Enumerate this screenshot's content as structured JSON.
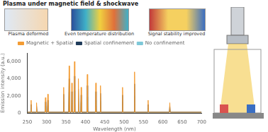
{
  "chart_data": {
    "type": "line",
    "title": "Plasma under magnetic field & shockwave",
    "annotations": [
      "Plasma deformed",
      "Even temperature distribution",
      "Signal stability improved"
    ],
    "x_label": "Wavelength (nm)",
    "y_label": "Emission intensity (a.u.)",
    "x": [
      250,
      259,
      260,
      261,
      273,
      274,
      275,
      296,
      297,
      298,
      302,
      303,
      304,
      343,
      344,
      345,
      357,
      358,
      359,
      364,
      365,
      366,
      371,
      372,
      373,
      381,
      382,
      383,
      388,
      389,
      390,
      404,
      405,
      406,
      426,
      427,
      428,
      438,
      439,
      440,
      495,
      496,
      497,
      526,
      527,
      528,
      561,
      562,
      563,
      617,
      618,
      619,
      700
    ],
    "series": [
      {
        "name": "Magnetic + Spatial",
        "color": "#f39c34",
        "values": [
          100,
          100,
          1500,
          100,
          100,
          1200,
          100,
          100,
          1800,
          100,
          100,
          2200,
          100,
          100,
          3000,
          100,
          100,
          5500,
          100,
          100,
          3500,
          100,
          100,
          6000,
          100,
          100,
          4000,
          100,
          100,
          3000,
          100,
          100,
          4500,
          100,
          100,
          3500,
          100,
          100,
          3200,
          100,
          100,
          3000,
          100,
          100,
          4800,
          100,
          100,
          1500,
          100,
          100,
          1200,
          100,
          100
        ]
      },
      {
        "name": "Spatial confinement",
        "color": "#1f3b5a",
        "values": [
          100,
          100,
          1000,
          100,
          100,
          800,
          100,
          100,
          1300,
          100,
          100,
          1500,
          100,
          100,
          2200,
          100,
          100,
          4000,
          100,
          100,
          2500,
          100,
          100,
          4300,
          100,
          100,
          2800,
          100,
          100,
          2100,
          100,
          100,
          3200,
          100,
          100,
          2500,
          100,
          100,
          2300,
          100,
          100,
          2100,
          100,
          100,
          3400,
          100,
          100,
          1000,
          100,
          100,
          800,
          100,
          100
        ]
      },
      {
        "name": "No confinement",
        "color": "#7ec8d8",
        "values": [
          100,
          100,
          600,
          100,
          100,
          500,
          100,
          100,
          800,
          100,
          100,
          900,
          100,
          100,
          1300,
          100,
          100,
          2400,
          100,
          100,
          1500,
          100,
          100,
          2600,
          100,
          100,
          1700,
          100,
          100,
          1300,
          100,
          100,
          1900,
          100,
          100,
          1500,
          100,
          100,
          1400,
          100,
          100,
          1300,
          100,
          100,
          2000,
          100,
          100,
          600,
          100,
          100,
          500,
          100,
          100
        ]
      }
    ],
    "xlim": [
      250,
      700
    ],
    "xticks": [
      250,
      300,
      350,
      400,
      450,
      500,
      550,
      600,
      650,
      700
    ],
    "ylim": [
      0,
      7000
    ],
    "yticks": [
      0,
      2000,
      4000,
      6000
    ],
    "grid": false,
    "legend": "top"
  }
}
